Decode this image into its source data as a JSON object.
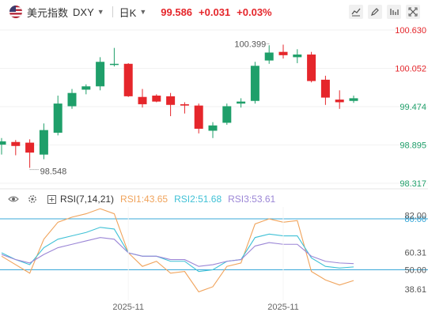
{
  "header": {
    "name": "美元指数",
    "code": "DXY",
    "period": "日K",
    "last": "99.586",
    "change": "+0.031",
    "change_pct": "+0.03%"
  },
  "rsi_header": {
    "title": "RSI(7,14,21)",
    "rsi1": "RSI1:43.65",
    "rsi2": "RSI2:51.68",
    "rsi3": "RSI3:53.61"
  },
  "colors": {
    "up": "#1f9f6a",
    "down": "#e5262b",
    "rsi1": "#f0a35b",
    "rsi2": "#3fc1d6",
    "rsi3": "#9b86d6",
    "axis_text": "#e5262b",
    "axis_text_down": "#1f9f6a"
  },
  "chart_data": [
    {
      "type": "candlestick",
      "price_ticks": [
        "100.630",
        "100.052",
        "99.474",
        "98.895",
        "98.317"
      ],
      "price_tick_values": [
        100.63,
        100.052,
        99.474,
        98.895,
        98.317
      ],
      "ylim": [
        98.317,
        100.63
      ],
      "annotations": [
        {
          "label": "100.399",
          "value": 100.399,
          "index": 19
        },
        {
          "label": "98.548",
          "value": 98.548,
          "index": 2
        }
      ],
      "x_labels": [
        {
          "label": "2025-11",
          "index": 9
        },
        {
          "label": "2025-11",
          "index": 20
        }
      ],
      "candles": [
        {
          "o": 98.9,
          "h": 99.0,
          "l": 98.75,
          "c": 98.95
        },
        {
          "o": 98.94,
          "h": 98.97,
          "l": 98.74,
          "c": 98.88
        },
        {
          "o": 98.93,
          "h": 98.98,
          "l": 98.55,
          "c": 98.78
        },
        {
          "o": 98.75,
          "h": 99.22,
          "l": 98.68,
          "c": 99.12
        },
        {
          "o": 99.08,
          "h": 99.64,
          "l": 99.04,
          "c": 99.52
        },
        {
          "o": 99.48,
          "h": 99.74,
          "l": 99.44,
          "c": 99.68
        },
        {
          "o": 99.73,
          "h": 99.81,
          "l": 99.66,
          "c": 99.78
        },
        {
          "o": 99.78,
          "h": 100.22,
          "l": 99.72,
          "c": 100.15
        },
        {
          "o": 100.12,
          "h": 100.36,
          "l": 100.08,
          "c": 100.12
        },
        {
          "o": 100.12,
          "h": 100.13,
          "l": 99.62,
          "c": 99.63
        },
        {
          "o": 99.62,
          "h": 99.74,
          "l": 99.46,
          "c": 99.51
        },
        {
          "o": 99.64,
          "h": 99.66,
          "l": 99.54,
          "c": 99.55
        },
        {
          "o": 99.63,
          "h": 99.68,
          "l": 99.33,
          "c": 99.5
        },
        {
          "o": 99.51,
          "h": 99.54,
          "l": 99.37,
          "c": 99.49
        },
        {
          "o": 99.49,
          "h": 99.52,
          "l": 99.07,
          "c": 99.14
        },
        {
          "o": 99.11,
          "h": 99.24,
          "l": 99.0,
          "c": 99.19
        },
        {
          "o": 99.23,
          "h": 99.52,
          "l": 99.2,
          "c": 99.48
        },
        {
          "o": 99.52,
          "h": 99.6,
          "l": 99.46,
          "c": 99.55
        },
        {
          "o": 99.56,
          "h": 100.15,
          "l": 99.52,
          "c": 100.09
        },
        {
          "o": 100.17,
          "h": 100.4,
          "l": 100.12,
          "c": 100.29
        },
        {
          "o": 100.3,
          "h": 100.41,
          "l": 100.2,
          "c": 100.25
        },
        {
          "o": 100.22,
          "h": 100.34,
          "l": 100.13,
          "c": 100.26
        },
        {
          "o": 100.26,
          "h": 100.3,
          "l": 99.84,
          "c": 99.86
        },
        {
          "o": 99.88,
          "h": 99.94,
          "l": 99.5,
          "c": 99.61
        },
        {
          "o": 99.58,
          "h": 99.72,
          "l": 99.44,
          "c": 99.54
        },
        {
          "o": 99.56,
          "h": 99.64,
          "l": 99.53,
          "c": 99.6
        }
      ]
    },
    {
      "type": "line",
      "title": "RSI(7,14,21)",
      "y_ticks": [
        "82.00",
        "60.31",
        "50.00",
        "38.61"
      ],
      "y_tick_values": [
        82.0,
        60.31,
        50.0,
        38.61
      ],
      "ylim": [
        33,
        87
      ],
      "reference_lines": [
        {
          "label": "80.00",
          "value": 80.0
        },
        {
          "label": "50.00",
          "value": 50.0
        }
      ],
      "series": [
        {
          "name": "RSI1",
          "values": [
            58,
            53,
            48,
            68,
            78,
            81,
            83,
            86,
            83,
            60,
            52,
            55,
            48,
            49,
            37,
            40,
            52,
            54,
            77,
            80,
            78,
            79,
            49,
            44,
            41,
            43.65
          ]
        },
        {
          "name": "RSI2",
          "values": [
            60,
            56,
            53,
            63,
            68,
            70,
            72,
            75,
            74,
            60,
            58,
            58,
            55,
            55,
            49,
            50,
            55,
            56,
            69,
            71,
            70,
            70,
            57,
            52,
            51,
            51.68
          ]
        },
        {
          "name": "RSI3",
          "values": [
            59,
            56,
            54,
            59,
            63,
            65,
            67,
            69,
            68,
            60,
            58,
            58,
            56,
            56,
            52,
            53,
            55,
            56,
            64,
            66,
            65,
            65,
            58,
            55,
            54,
            53.61
          ]
        }
      ]
    }
  ]
}
